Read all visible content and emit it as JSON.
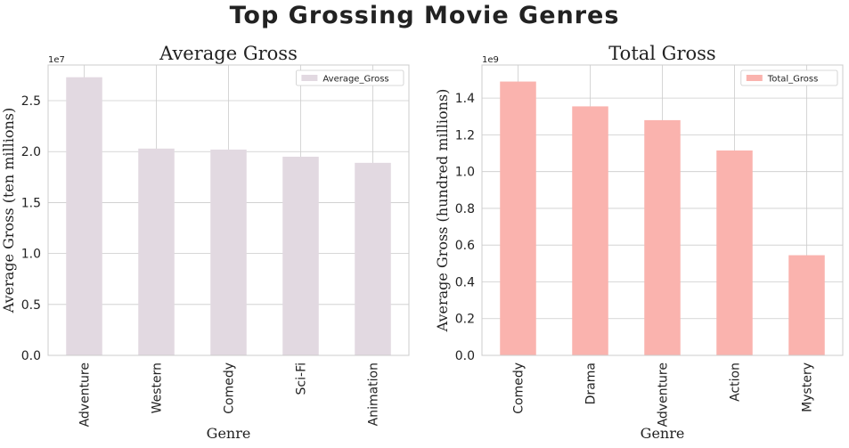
{
  "suptitle": "Top Grossing Movie Genres",
  "chart_data": [
    {
      "type": "bar",
      "title": "Average Gross",
      "xlabel": "Genre",
      "ylabel": "Average Gross (ten millions)",
      "scale_label": "1e7",
      "scale": 10000000,
      "categories": [
        "Adventure",
        "Western",
        "Comedy",
        "Sci-Fi",
        "Animation"
      ],
      "series": [
        {
          "name": "Average_Gross",
          "color": "#e2d9e1",
          "values": [
            27300000,
            20300000,
            20200000,
            19500000,
            18900000
          ]
        }
      ],
      "ylim": [
        0,
        28500000
      ],
      "yticks": [
        0,
        5000000,
        10000000,
        15000000,
        20000000,
        25000000
      ],
      "ytick_labels": [
        "0.0",
        "0.5",
        "1.0",
        "1.5",
        "2.0",
        "2.5"
      ],
      "legend_position": "upper right",
      "grid": true
    },
    {
      "type": "bar",
      "title": "Total Gross",
      "xlabel": "Genre",
      "ylabel": "Average Gross (hundred millions)",
      "scale_label": "1e9",
      "scale": 1000000000,
      "categories": [
        "Comedy",
        "Drama",
        "Adventure",
        "Action",
        "Mystery"
      ],
      "series": [
        {
          "name": "Total_Gross",
          "color": "#fab3ae",
          "values": [
            1490000000,
            1355000000,
            1280000000,
            1115000000,
            545000000
          ]
        }
      ],
      "ylim": [
        0,
        1580000000
      ],
      "yticks": [
        0,
        200000000,
        400000000,
        600000000,
        800000000,
        1000000000,
        1200000000,
        1400000000
      ],
      "ytick_labels": [
        "0.0",
        "0.2",
        "0.4",
        "0.6",
        "0.8",
        "1.0",
        "1.2",
        "1.4"
      ],
      "legend_position": "upper right",
      "grid": true
    }
  ]
}
